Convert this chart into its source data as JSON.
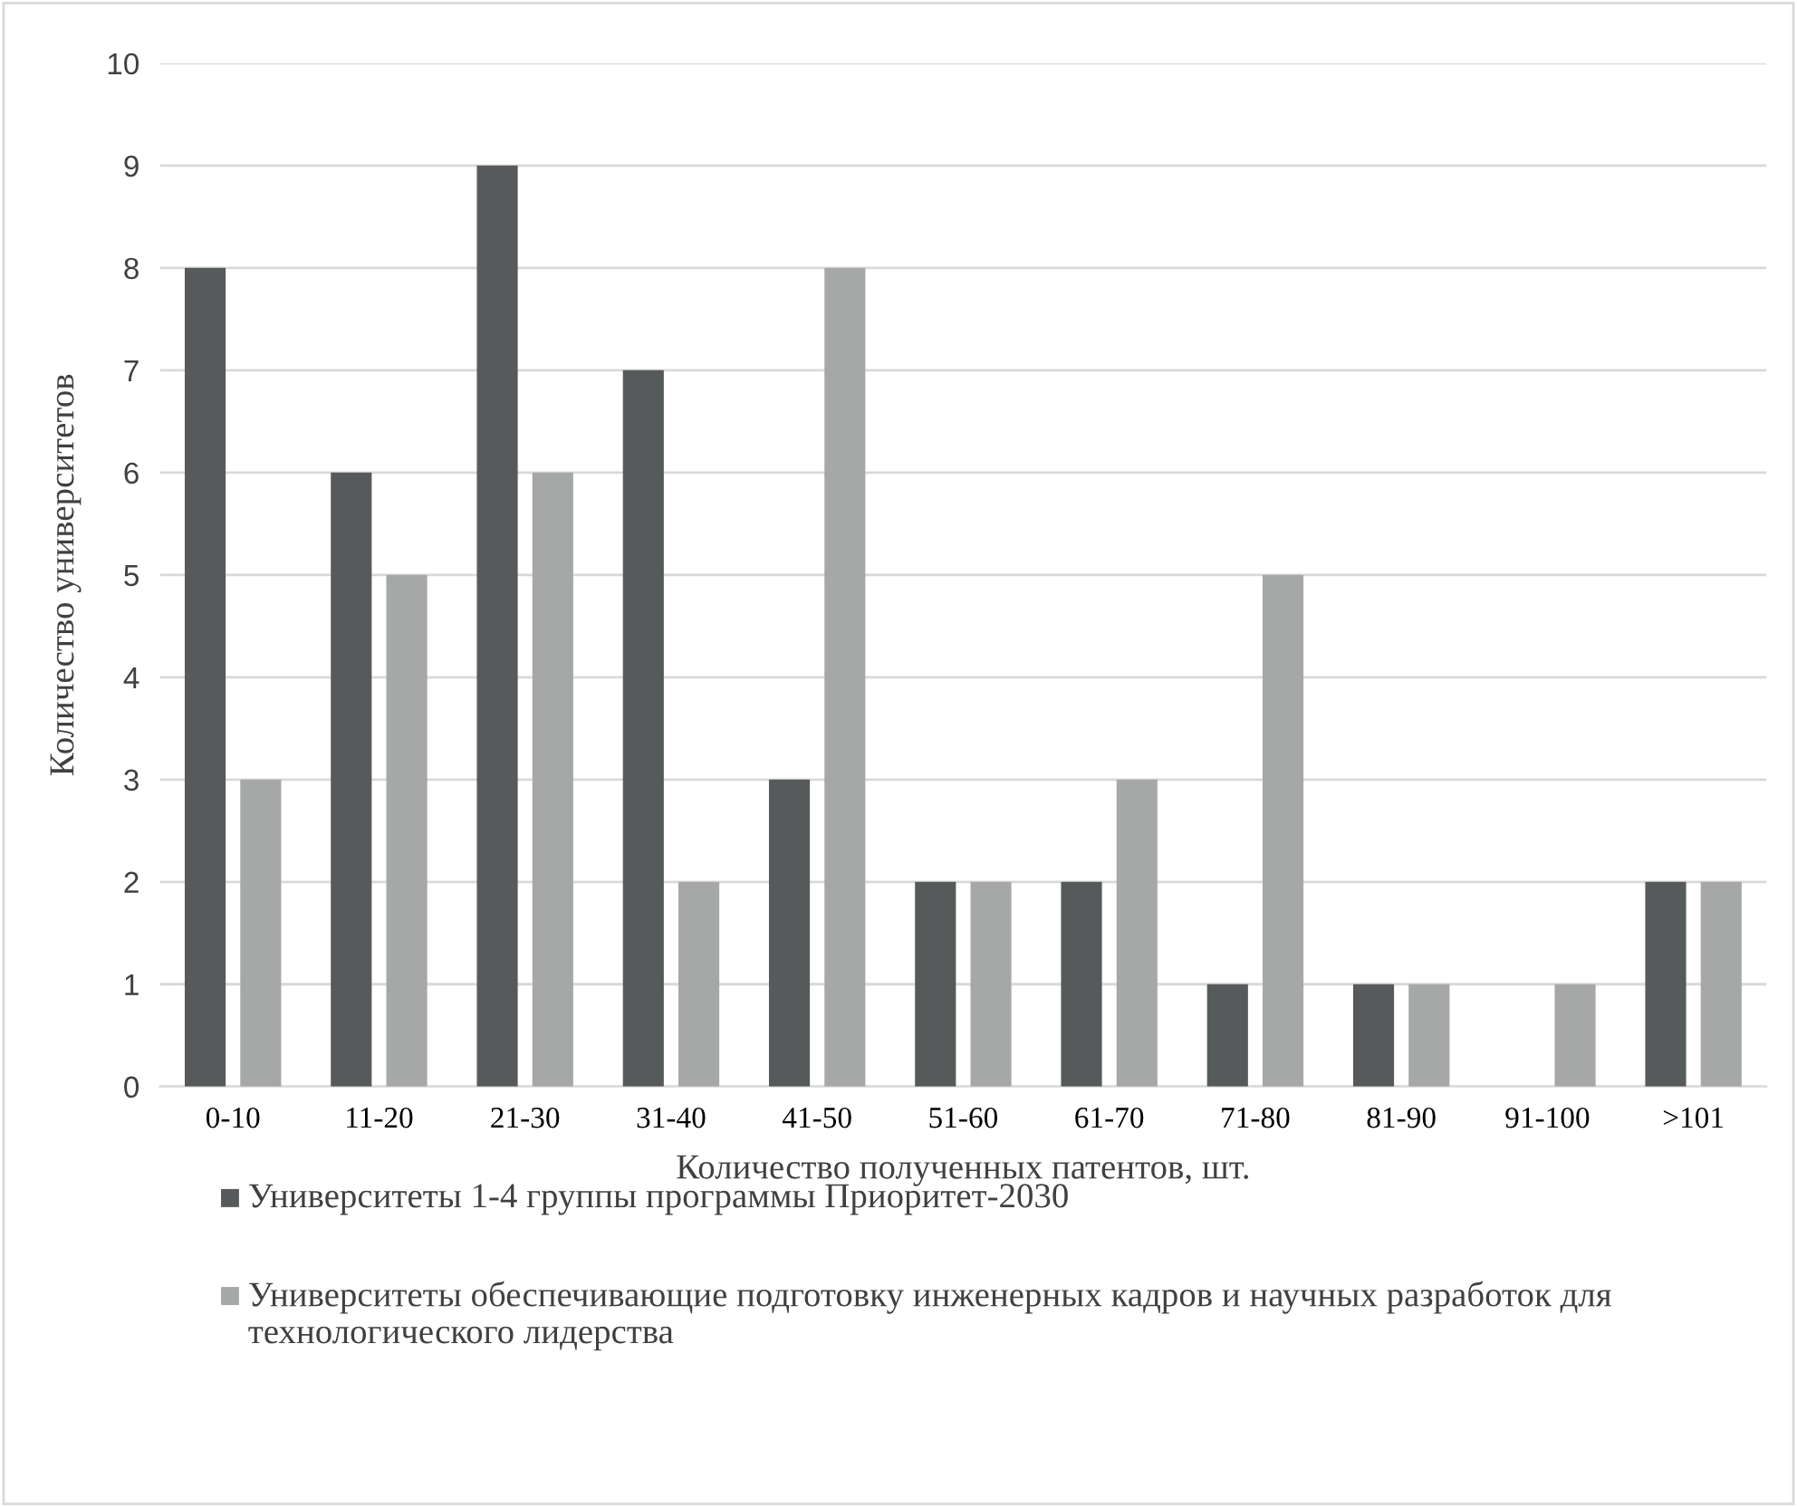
{
  "chart_data": {
    "type": "bar",
    "xlabel": "Количество полученных патентов, шт.",
    "ylabel": "Количество университетов",
    "categories": [
      "0-10",
      "11-20",
      "21-30",
      "31-40",
      "41-50",
      "51-60",
      "61-70",
      "71-80",
      "81-90",
      "91-100",
      ">101"
    ],
    "series": [
      {
        "name": "Университеты 1-4 группы программы Приоритет-2030",
        "color": "#575a5a",
        "values": [
          8,
          6,
          9,
          7,
          3,
          2,
          2,
          1,
          1,
          0,
          2
        ]
      },
      {
        "name": "Университеты обеспечивающие подготовку инженерных кадров и научных разработок для технологического лидерства",
        "color": "#a6a8a8",
        "values": [
          3,
          5,
          6,
          2,
          8,
          2,
          3,
          5,
          1,
          1,
          2
        ]
      }
    ],
    "ylim": [
      0,
      10
    ],
    "yticks": [
      0,
      1,
      2,
      3,
      4,
      5,
      6,
      7,
      8,
      9,
      10
    ],
    "grid": "y",
    "legend": "bottom"
  }
}
